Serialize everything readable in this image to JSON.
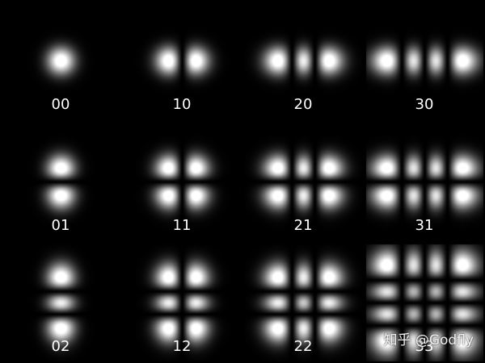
{
  "modes": [
    {
      "label": "00",
      "m": 0,
      "n": 0
    },
    {
      "label": "10",
      "m": 1,
      "n": 0
    },
    {
      "label": "20",
      "m": 2,
      "n": 0
    },
    {
      "label": "30",
      "m": 3,
      "n": 0
    },
    {
      "label": "01",
      "m": 0,
      "n": 1
    },
    {
      "label": "11",
      "m": 1,
      "n": 1
    },
    {
      "label": "21",
      "m": 2,
      "n": 1
    },
    {
      "label": "31",
      "m": 3,
      "n": 1
    },
    {
      "label": "02",
      "m": 0,
      "n": 2
    },
    {
      "label": "12",
      "m": 1,
      "n": 2
    },
    {
      "label": "22",
      "m": 2,
      "n": 2
    },
    {
      "label": "33",
      "m": 3,
      "n": 3
    }
  ],
  "watermark": "知乎 @Godfly",
  "colors": {
    "background": "#000000",
    "pattern": "#ffffff",
    "label": "#ffffff"
  }
}
